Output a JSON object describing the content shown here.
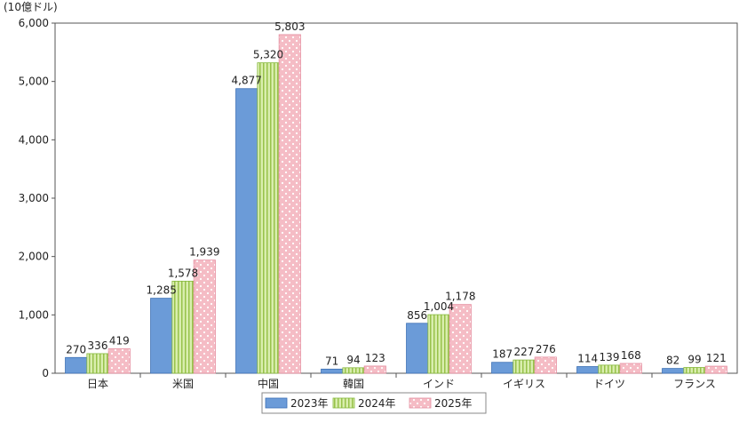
{
  "chart_data": {
    "type": "bar",
    "unit_label": "(10億ドル)",
    "categories": [
      "日本",
      "米国",
      "中国",
      "韓国",
      "インド",
      "イギリス",
      "ドイツ",
      "フランス"
    ],
    "series": [
      {
        "name": "2023年",
        "values": [
          270,
          1285,
          4877,
          71,
          856,
          187,
          114,
          82
        ],
        "labels": [
          "270",
          "1,285",
          "4,877",
          "71",
          "856",
          "187",
          "114",
          "82"
        ],
        "color": "#6b9bd8",
        "pattern": "solid"
      },
      {
        "name": "2024年",
        "values": [
          336,
          1578,
          5320,
          94,
          1004,
          227,
          139,
          99
        ],
        "labels": [
          "336",
          "1,578",
          "5,320",
          "94",
          "1,004",
          "227",
          "139",
          "99"
        ],
        "color": "#cfe89a",
        "pattern": "vertical-stripes"
      },
      {
        "name": "2025年",
        "values": [
          419,
          1939,
          5803,
          123,
          1178,
          276,
          168,
          121
        ],
        "labels": [
          "419",
          "1,939",
          "5,803",
          "123",
          "1,178",
          "276",
          "168",
          "121"
        ],
        "color": "#f7c3cc",
        "pattern": "dots"
      }
    ],
    "ylim": [
      0,
      6000
    ],
    "yticks": [
      0,
      1000,
      2000,
      3000,
      4000,
      5000,
      6000
    ],
    "ytick_labels": [
      "0",
      "1,000",
      "2,000",
      "3,000",
      "4,000",
      "5,000",
      "6,000"
    ],
    "grid": false,
    "legend_position": "bottom-center"
  }
}
